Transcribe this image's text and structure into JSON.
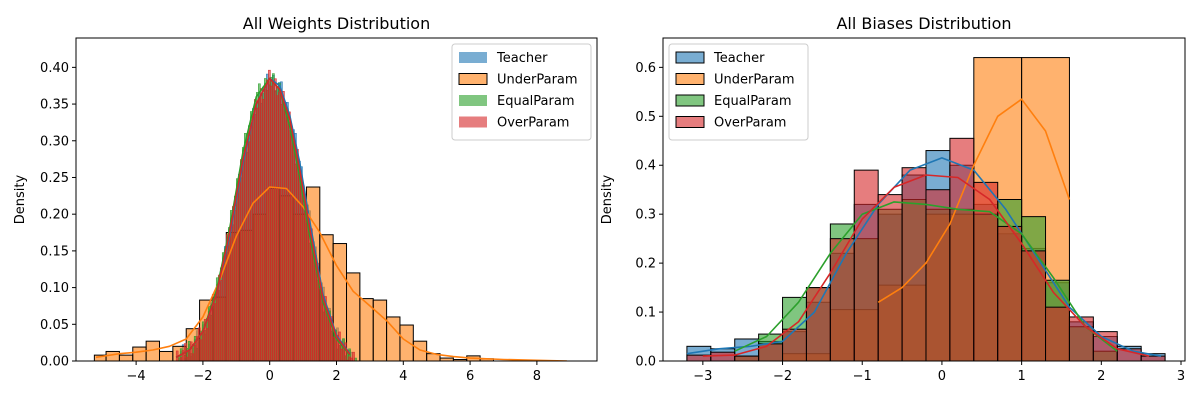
{
  "chart_data": [
    {
      "type": "histogram",
      "title": "All Weights Distribution",
      "xlabel": "",
      "ylabel": "Density",
      "xlim": [
        -5.8,
        9.8
      ],
      "ylim": [
        0,
        0.44
      ],
      "xticks": [
        -4,
        -2,
        0,
        2,
        4,
        6,
        8
      ],
      "xtick_labels": [
        "−4",
        "−2",
        "0",
        "2",
        "4",
        "6",
        "8"
      ],
      "yticks": [
        0,
        0.05,
        0.1,
        0.15,
        0.2,
        0.25,
        0.3,
        0.35,
        0.4
      ],
      "ytick_labels": [
        "0.00",
        "0.05",
        "0.10",
        "0.15",
        "0.20",
        "0.25",
        "0.30",
        "0.35",
        "0.40"
      ],
      "legend_position": "top-right",
      "series": [
        {
          "name": "Teacher",
          "color": "#1f77b4",
          "hist_style": "fine",
          "kde_x": [
            -2.8,
            -2.4,
            -2.0,
            -1.6,
            -1.2,
            -0.8,
            -0.4,
            0.0,
            0.3,
            0.6,
            0.9,
            1.2,
            1.6,
            2.0,
            2.4
          ],
          "kde_y": [
            0.005,
            0.015,
            0.04,
            0.09,
            0.17,
            0.27,
            0.35,
            0.385,
            0.375,
            0.335,
            0.27,
            0.19,
            0.09,
            0.035,
            0.01
          ]
        },
        {
          "name": "UnderParam",
          "color": "#ff7f0e",
          "hist_style": "coarse",
          "bins": [
            [
              -5.25,
              -4.9,
              0.008
            ],
            [
              -4.9,
              -4.5,
              0.013
            ],
            [
              -4.5,
              -4.1,
              0.008
            ],
            [
              -4.1,
              -3.7,
              0.019
            ],
            [
              -3.7,
              -3.3,
              0.027
            ],
            [
              -3.3,
              -2.9,
              0.013
            ],
            [
              -2.9,
              -2.5,
              0.02
            ],
            [
              -2.5,
              -2.1,
              0.044
            ],
            [
              -2.1,
              -1.7,
              0.083
            ],
            [
              -1.7,
              -1.3,
              0.087
            ],
            [
              -1.3,
              -0.9,
              0.175
            ],
            [
              -0.9,
              -0.5,
              0.178
            ],
            [
              -0.5,
              -0.1,
              0.2
            ],
            [
              -0.1,
              0.3,
              0.235
            ],
            [
              0.3,
              0.7,
              0.225
            ],
            [
              0.7,
              1.1,
              0.2
            ],
            [
              1.1,
              1.5,
              0.237
            ],
            [
              1.5,
              1.9,
              0.172
            ],
            [
              1.9,
              2.3,
              0.16
            ],
            [
              2.3,
              2.7,
              0.12
            ],
            [
              2.7,
              3.1,
              0.085
            ],
            [
              3.1,
              3.5,
              0.083
            ],
            [
              3.5,
              3.9,
              0.06
            ],
            [
              3.9,
              4.3,
              0.049
            ],
            [
              4.3,
              4.7,
              0.027
            ],
            [
              4.7,
              5.1,
              0.01
            ],
            [
              5.1,
              5.5,
              0.004
            ],
            [
              5.5,
              5.9,
              0.002
            ],
            [
              5.9,
              6.3,
              0.007
            ],
            [
              6.3,
              6.7,
              0.003
            ]
          ],
          "kde_x": [
            -5.2,
            -4.5,
            -4.0,
            -3.5,
            -3.0,
            -2.5,
            -2.0,
            -1.5,
            -1.0,
            -0.5,
            0.0,
            0.5,
            1.0,
            1.5,
            2.0,
            2.5,
            3.0,
            3.5,
            4.0,
            4.5,
            5.0,
            5.5,
            6.0,
            7.0,
            8.0,
            8.9
          ],
          "kde_y": [
            0.005,
            0.01,
            0.012,
            0.015,
            0.02,
            0.03,
            0.06,
            0.11,
            0.17,
            0.215,
            0.237,
            0.235,
            0.21,
            0.175,
            0.13,
            0.095,
            0.075,
            0.055,
            0.03,
            0.015,
            0.009,
            0.006,
            0.004,
            0.002,
            0.001,
            0.0
          ]
        },
        {
          "name": "EqualParam",
          "color": "#2ca02c",
          "hist_style": "fine",
          "kde_x": [
            -2.8,
            -2.4,
            -2.0,
            -1.6,
            -1.2,
            -0.8,
            -0.4,
            0.0,
            0.3,
            0.6,
            0.9,
            1.2,
            1.6,
            2.0,
            2.4
          ],
          "kde_y": [
            0.005,
            0.015,
            0.04,
            0.095,
            0.18,
            0.285,
            0.36,
            0.385,
            0.37,
            0.32,
            0.25,
            0.17,
            0.08,
            0.03,
            0.008
          ]
        },
        {
          "name": "OverParam",
          "color": "#d62728",
          "hist_style": "fine",
          "kde_x": [
            -2.8,
            -2.4,
            -2.0,
            -1.6,
            -1.2,
            -0.8,
            -0.4,
            0.0,
            0.3,
            0.6,
            0.9,
            1.2,
            1.6,
            2.0,
            2.4
          ],
          "kde_y": [
            0.005,
            0.015,
            0.04,
            0.09,
            0.175,
            0.275,
            0.35,
            0.385,
            0.37,
            0.33,
            0.26,
            0.18,
            0.085,
            0.033,
            0.009
          ]
        }
      ]
    },
    {
      "type": "histogram",
      "title": "All Biases Distribution",
      "xlabel": "",
      "ylabel": "Density",
      "xlim": [
        -3.5,
        3.05
      ],
      "ylim": [
        0,
        0.66
      ],
      "xticks": [
        -3,
        -2,
        -1,
        0,
        1,
        2,
        3
      ],
      "xtick_labels": [
        "−3",
        "−2",
        "−1",
        "0",
        "1",
        "2",
        "3"
      ],
      "yticks": [
        0,
        0.1,
        0.2,
        0.3,
        0.4,
        0.5,
        0.6
      ],
      "ytick_labels": [
        "0.0",
        "0.1",
        "0.2",
        "0.3",
        "0.4",
        "0.5",
        "0.6"
      ],
      "legend_position": "top-left",
      "series": [
        {
          "name": "Teacher",
          "color": "#1f77b4",
          "bins": [
            [
              -3.2,
              -2.9,
              0.03
            ],
            [
              -2.9,
              -2.6,
              0.025
            ],
            [
              -2.6,
              -2.3,
              0.045
            ],
            [
              -2.3,
              -2.0,
              0.04
            ],
            [
              -2.0,
              -1.7,
              0.06
            ],
            [
              -1.7,
              -1.4,
              0.12
            ],
            [
              -1.4,
              -1.1,
              0.22
            ],
            [
              -1.1,
              -0.8,
              0.32
            ],
            [
              -0.8,
              -0.5,
              0.3
            ],
            [
              -0.5,
              -0.2,
              0.38
            ],
            [
              -0.2,
              0.1,
              0.43
            ],
            [
              0.1,
              0.4,
              0.4
            ],
            [
              0.4,
              0.7,
              0.32
            ],
            [
              0.7,
              1.0,
              0.26
            ],
            [
              1.0,
              1.3,
              0.23
            ],
            [
              1.3,
              1.6,
              0.16
            ],
            [
              1.6,
              1.9,
              0.08
            ],
            [
              1.9,
              2.2,
              0.05
            ],
            [
              2.2,
              2.5,
              0.03
            ],
            [
              2.5,
              2.8,
              0.015
            ]
          ],
          "kde_x": [
            -3.2,
            -2.8,
            -2.4,
            -2.0,
            -1.6,
            -1.2,
            -0.8,
            -0.4,
            0.0,
            0.4,
            0.8,
            1.2,
            1.6,
            2.0,
            2.4,
            2.75
          ],
          "kde_y": [
            0.015,
            0.025,
            0.03,
            0.04,
            0.1,
            0.22,
            0.32,
            0.39,
            0.415,
            0.39,
            0.31,
            0.21,
            0.11,
            0.05,
            0.02,
            0.01
          ]
        },
        {
          "name": "UnderParam",
          "color": "#ff7f0e",
          "bins": [
            [
              -2.0,
              -1.4,
              0.015
            ],
            [
              -1.4,
              -0.8,
              0.105
            ],
            [
              -0.8,
              -0.2,
              0.155
            ],
            [
              -0.2,
              0.4,
              0.3
            ],
            [
              0.4,
              1.0,
              0.62
            ],
            [
              1.0,
              1.6,
              0.62
            ]
          ],
          "kde_x": [
            -0.8,
            -0.5,
            -0.2,
            0.1,
            0.4,
            0.7,
            1.0,
            1.3,
            1.6
          ],
          "kde_y": [
            0.12,
            0.15,
            0.2,
            0.28,
            0.4,
            0.5,
            0.535,
            0.47,
            0.33
          ]
        },
        {
          "name": "EqualParam",
          "color": "#2ca02c",
          "bins": [
            [
              -2.6,
              -2.3,
              0.01
            ],
            [
              -2.3,
              -2.0,
              0.055
            ],
            [
              -2.0,
              -1.7,
              0.13
            ],
            [
              -1.7,
              -1.4,
              0.15
            ],
            [
              -1.4,
              -1.1,
              0.28
            ],
            [
              -1.1,
              -0.8,
              0.25
            ],
            [
              -0.8,
              -0.5,
              0.31
            ],
            [
              -0.5,
              -0.2,
              0.33
            ],
            [
              -0.2,
              0.1,
              0.31
            ],
            [
              0.1,
              0.4,
              0.31
            ],
            [
              0.4,
              0.7,
              0.3
            ],
            [
              0.7,
              1.0,
              0.33
            ],
            [
              1.0,
              1.3,
              0.295
            ],
            [
              1.3,
              1.6,
              0.165
            ],
            [
              1.6,
              1.9,
              0.07
            ],
            [
              1.9,
              2.2,
              0.02
            ]
          ],
          "kde_x": [
            -2.6,
            -2.2,
            -1.8,
            -1.4,
            -1.0,
            -0.6,
            -0.2,
            0.2,
            0.6,
            1.0,
            1.4,
            1.8,
            2.2
          ],
          "kde_y": [
            0.02,
            0.05,
            0.12,
            0.22,
            0.3,
            0.325,
            0.32,
            0.31,
            0.305,
            0.26,
            0.17,
            0.07,
            0.02
          ]
        },
        {
          "name": "OverParam",
          "color": "#d62728",
          "bins": [
            [
              -3.2,
              -2.9,
              0.012
            ],
            [
              -2.9,
              -2.6,
              0.018
            ],
            [
              -2.6,
              -2.3,
              0.01
            ],
            [
              -2.3,
              -2.0,
              0.035
            ],
            [
              -2.0,
              -1.7,
              0.065
            ],
            [
              -1.7,
              -1.4,
              0.15
            ],
            [
              -1.4,
              -1.1,
              0.25
            ],
            [
              -1.1,
              -0.8,
              0.39
            ],
            [
              -0.8,
              -0.5,
              0.34
            ],
            [
              -0.5,
              -0.2,
              0.395
            ],
            [
              -0.2,
              0.1,
              0.35
            ],
            [
              0.1,
              0.4,
              0.455
            ],
            [
              0.4,
              0.7,
              0.365
            ],
            [
              0.7,
              1.0,
              0.275
            ],
            [
              1.0,
              1.3,
              0.225
            ],
            [
              1.3,
              1.6,
              0.11
            ],
            [
              1.6,
              1.9,
              0.09
            ],
            [
              1.9,
              2.2,
              0.06
            ],
            [
              2.2,
              2.5,
              0.025
            ],
            [
              2.5,
              2.8,
              0.01
            ]
          ],
          "kde_x": [
            -3.0,
            -2.6,
            -2.2,
            -1.8,
            -1.4,
            -1.0,
            -0.6,
            -0.2,
            0.2,
            0.6,
            1.0,
            1.4,
            1.8,
            2.2,
            2.6
          ],
          "kde_y": [
            0.01,
            0.012,
            0.03,
            0.08,
            0.18,
            0.29,
            0.355,
            0.38,
            0.375,
            0.33,
            0.24,
            0.14,
            0.07,
            0.025,
            0.01
          ]
        }
      ]
    }
  ]
}
